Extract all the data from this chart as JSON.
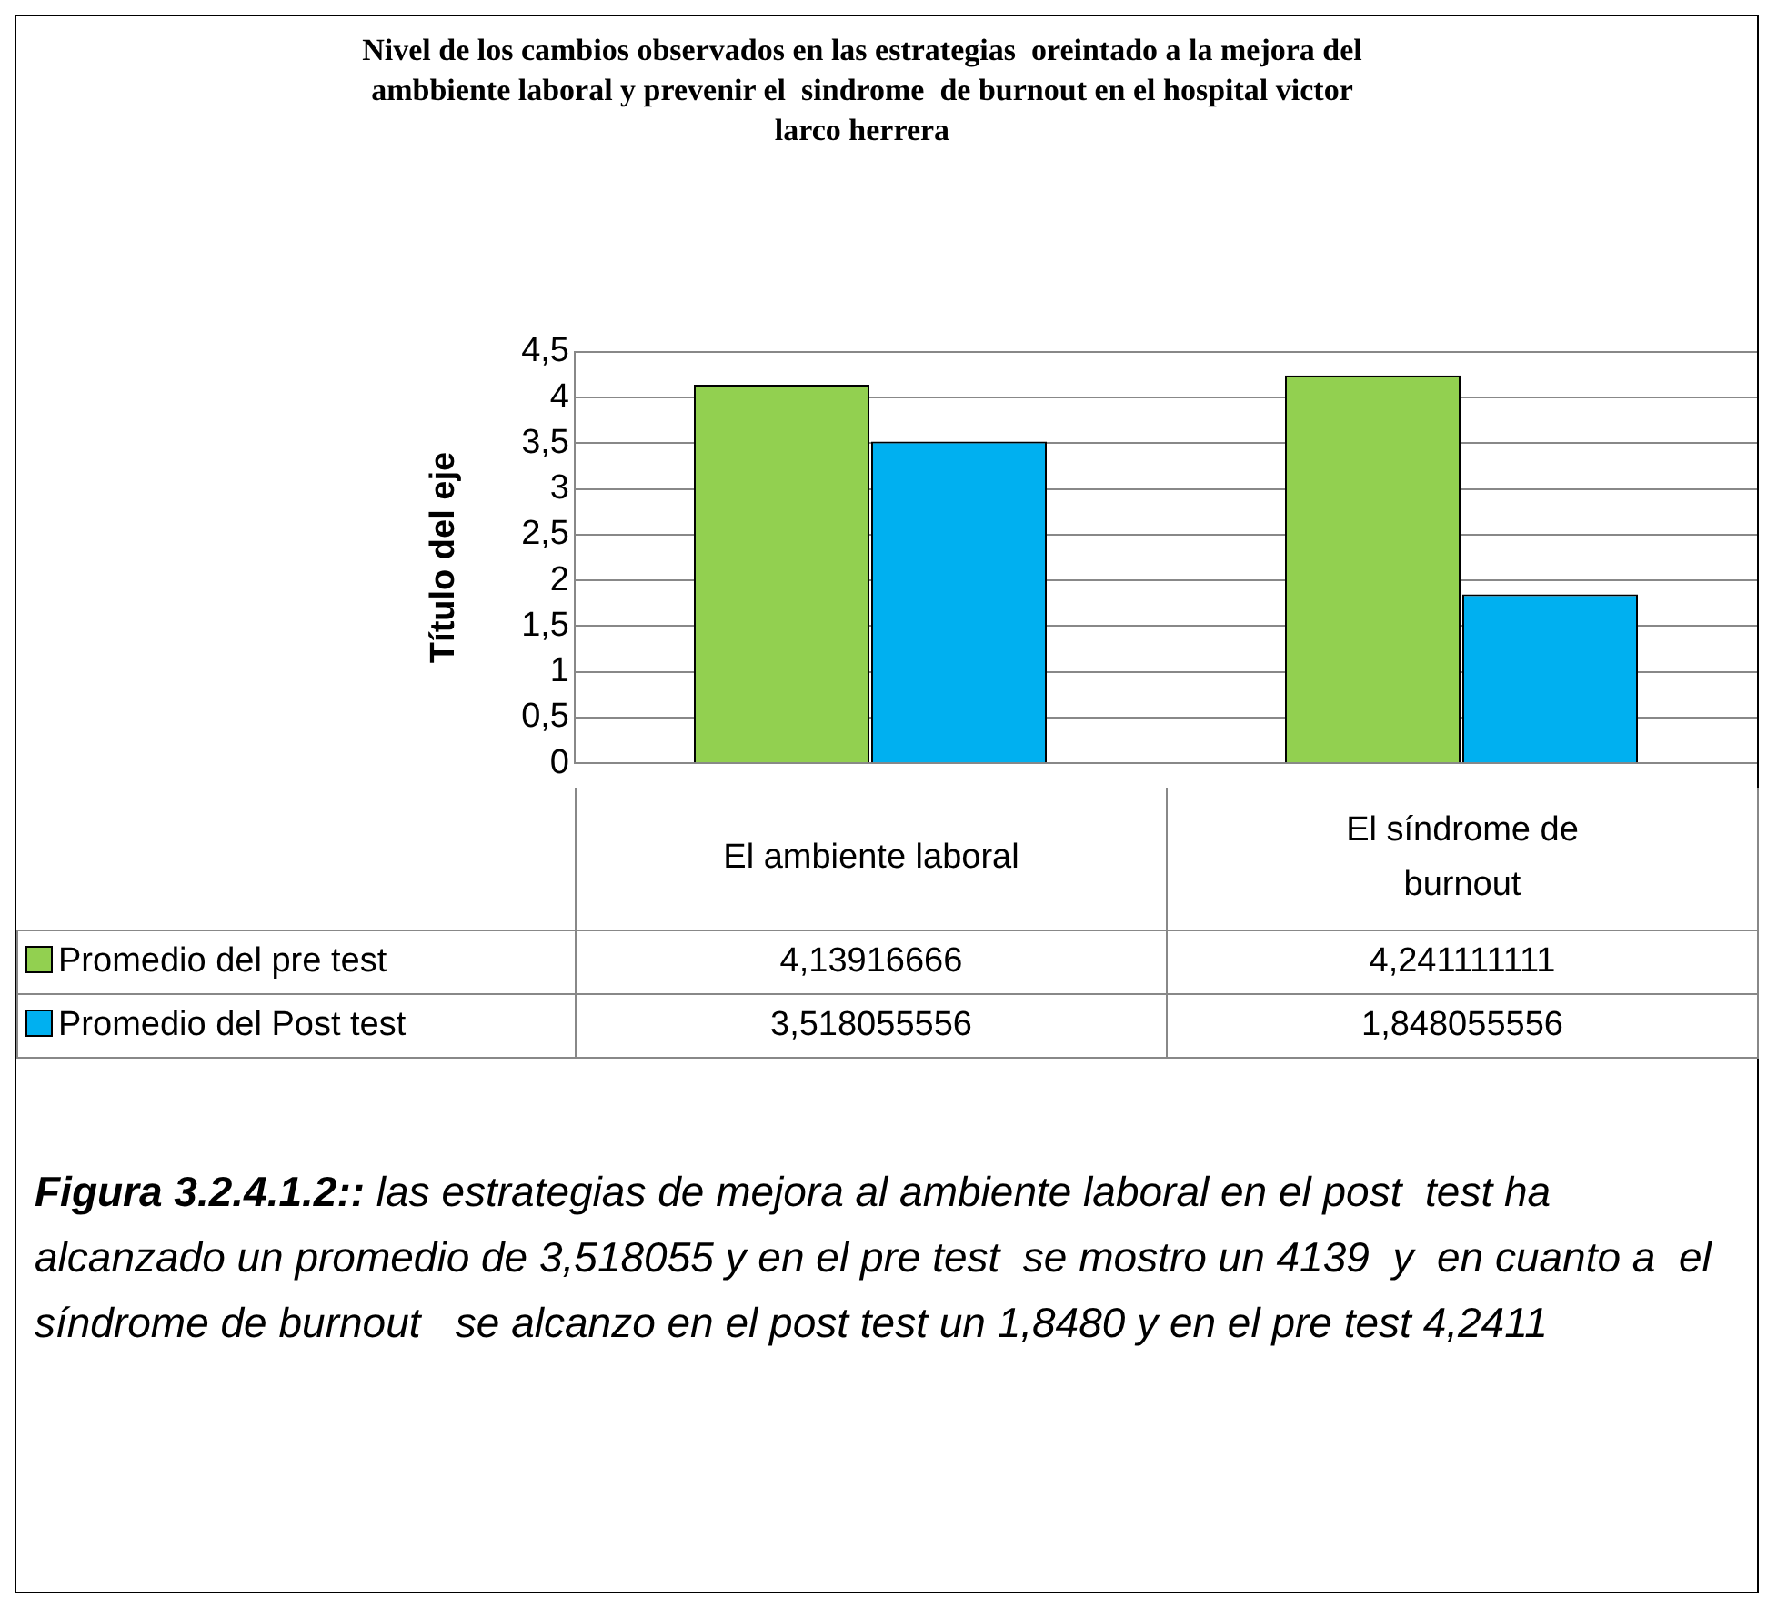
{
  "chart_data": {
    "type": "bar",
    "title": "Nivel de los cambios observados en las estrategias  oreintado a la mejora del ambbiente laboral y prevenir el  sindrome  de burnout en el hospital victor larco herrera",
    "ylabel": "Título del eje",
    "categories": [
      "El ambiente laboral",
      "El síndrome de burnout"
    ],
    "series": [
      {
        "name": "Promedio del pre test",
        "color": "#92d050",
        "values": [
          4.13916666,
          4.241111111
        ],
        "value_labels": [
          "4,13916666",
          "4,241111111"
        ]
      },
      {
        "name": "Promedio del Post test",
        "color": "#00b0f0",
        "values": [
          3.518055556,
          1.848055556
        ],
        "value_labels": [
          "3,518055556",
          "1,848055556"
        ]
      }
    ],
    "ylim": [
      0,
      4.5
    ],
    "yticks": [
      {
        "value": 0,
        "label": "0"
      },
      {
        "value": 0.5,
        "label": "0,5"
      },
      {
        "value": 1,
        "label": "1"
      },
      {
        "value": 1.5,
        "label": "1,5"
      },
      {
        "value": 2,
        "label": "2"
      },
      {
        "value": 2.5,
        "label": "2,5"
      },
      {
        "value": 3,
        "label": "3"
      },
      {
        "value": 3.5,
        "label": "3,5"
      },
      {
        "value": 4,
        "label": "4"
      },
      {
        "value": 4.5,
        "label": "4,5"
      }
    ],
    "grid": "y",
    "legend": "bottom",
    "annotations": [
      "Figura 3.2.4.1.2::",
      " las estrategias de mejora al ambiente laboral en el post  test ha alcanzado un promedio de 3,518055 y en el pre test  se mostro un 4139  y  en cuanto a  el síndrome de burnout   se alcanzo en el post test un 1,8480 y en el pre test 4,2411"
    ]
  }
}
